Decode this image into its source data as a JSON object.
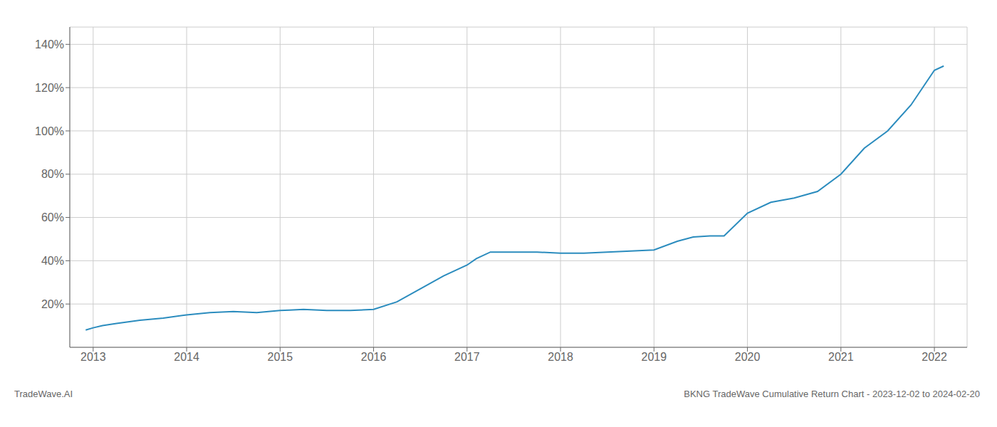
{
  "chart_data": {
    "type": "line",
    "title": "BKNG TradeWave Cumulative Return Chart - 2023-12-02 to 2024-02-20",
    "annotations": [
      "TradeWave.AI"
    ],
    "x": [
      2012.92,
      2013.0,
      2013.1,
      2013.25,
      2013.5,
      2013.75,
      2014.0,
      2014.25,
      2014.5,
      2014.75,
      2015.0,
      2015.1,
      2015.25,
      2015.5,
      2015.75,
      2016.0,
      2016.25,
      2016.5,
      2016.75,
      2017.0,
      2017.1,
      2017.25,
      2017.5,
      2017.75,
      2018.0,
      2018.25,
      2018.5,
      2018.75,
      2019.0,
      2019.25,
      2019.42,
      2019.6,
      2019.75,
      2020.0,
      2020.25,
      2020.5,
      2020.75,
      2021.0,
      2021.25,
      2021.5,
      2021.75,
      2022.0,
      2022.1
    ],
    "values": [
      8,
      9,
      10,
      11,
      12.5,
      13.5,
      15,
      16,
      16.5,
      16,
      17,
      17.2,
      17.5,
      17,
      17,
      17.5,
      21,
      27,
      33,
      38,
      41,
      44,
      44,
      44,
      43.5,
      43.5,
      44,
      44.5,
      45,
      49,
      51,
      51.5,
      51.5,
      62,
      67,
      69,
      72,
      80,
      92,
      100,
      112,
      128,
      130
    ],
    "color": "#2b8cbe",
    "xlim": [
      2012.75,
      2022.35
    ],
    "xticks": [
      2013,
      2014,
      2015,
      2016,
      2017,
      2018,
      2019,
      2020,
      2021,
      2022
    ],
    "ylim": [
      0,
      148
    ],
    "yticks": [
      {
        "value": 20,
        "label": "20%"
      },
      {
        "value": 40,
        "label": "40%"
      },
      {
        "value": 60,
        "label": "60%"
      },
      {
        "value": 80,
        "label": "80%"
      },
      {
        "value": 100,
        "label": "100%"
      },
      {
        "value": 120,
        "label": "120%"
      },
      {
        "value": 140,
        "label": "140%"
      }
    ],
    "grid": true
  }
}
